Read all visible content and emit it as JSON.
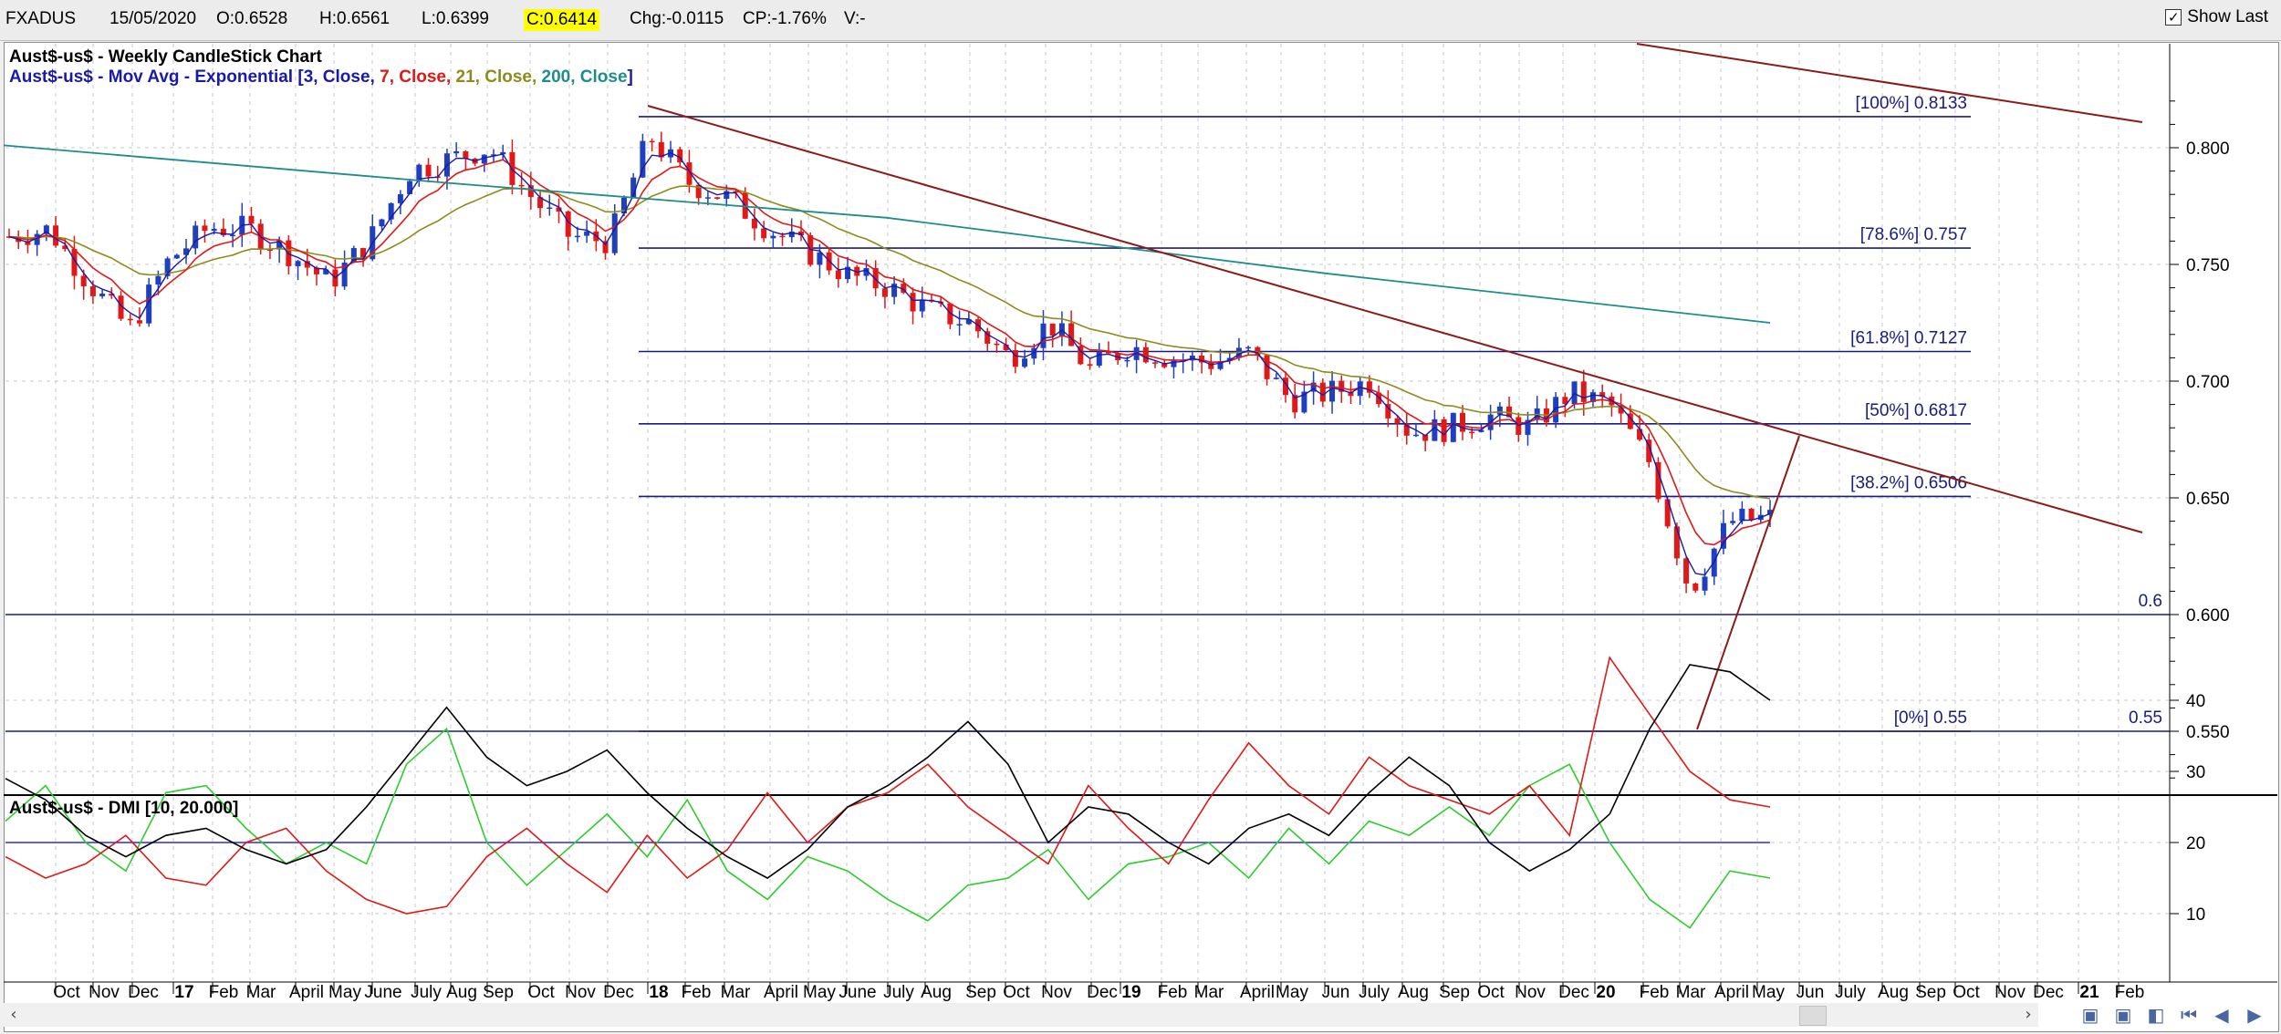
{
  "header": {
    "symbol": "FXADUS",
    "date": "15/05/2020",
    "open": "O:0.6528",
    "high": "H:0.6561",
    "low": "L:0.6399",
    "close": "C:0.6414",
    "change": "Chg:-0.0115",
    "change_pct": "CP:-1.76%",
    "volume": "V:-",
    "show_last_label": "Show Last"
  },
  "price_panel": {
    "title": "Aust$-us$ - Weekly CandleStick Chart",
    "ma_title": {
      "prefix": "Aust$-us$ - Mov Avg - Exponential [",
      "p1": "3, Close,",
      "p2": " 7, Close,",
      "p3": " 21, Close,",
      "p4": " 200, Close",
      "suffix": "]"
    }
  },
  "dmi_panel": {
    "title": "Aust$-us$ - DMI [10, 20.000]"
  },
  "colors": {
    "up_candle": "#1f3fbf",
    "down_candle": "#e01818",
    "ema3": "#1a1aa6",
    "ema7": "#e01818",
    "ema21": "#8c8c1e",
    "ema200": "#1f8c8c",
    "trendline": "#8b1a1a",
    "fib": "#1a1a80",
    "dmi_plus": "#2ecc2e",
    "dmi_minus": "#e01818",
    "adx": "#000000"
  },
  "chart_data": [
    {
      "type": "candlestick",
      "title": "Aust$-us$ - Weekly CandleStick Chart",
      "x_labels": [
        "Oct",
        "Nov",
        "Dec",
        "17",
        "Feb",
        "Mar",
        "April",
        "May",
        "June",
        "July",
        "Aug",
        "Sep",
        "Oct",
        "Nov",
        "Dec",
        "18",
        "Feb",
        "Mar",
        "April",
        "May",
        "June",
        "July",
        "Aug",
        "Sep",
        "Oct",
        "Nov",
        "Dec",
        "19",
        "Feb",
        "Mar",
        "April",
        "May",
        "Jun",
        "July",
        "Aug",
        "Sep",
        "Oct",
        "Nov",
        "Dec",
        "20",
        "Feb",
        "Mar",
        "April",
        "May",
        "Jun",
        "July",
        "Aug",
        "Sep",
        "Oct",
        "Nov",
        "Dec",
        "21",
        "Feb"
      ],
      "y_ticks": [
        "0.550",
        "0.600",
        "0.650",
        "0.700",
        "0.750",
        "0.800"
      ],
      "ylim": [
        0.52,
        0.83
      ],
      "series_close_approx": [
        {
          "date": "Sep 2016",
          "close": 0.762
        },
        {
          "date": "Oct 2016",
          "close": 0.765
        },
        {
          "date": "Nov 2016",
          "close": 0.742
        },
        {
          "date": "Dec 2016",
          "close": 0.722
        },
        {
          "date": "Jan 2017",
          "close": 0.752
        },
        {
          "date": "Feb 2017",
          "close": 0.766
        },
        {
          "date": "Mar 2017",
          "close": 0.765
        },
        {
          "date": "Apr 2017",
          "close": 0.755
        },
        {
          "date": "May 2017",
          "close": 0.742
        },
        {
          "date": "Jun 2017",
          "close": 0.76
        },
        {
          "date": "Jul 2017",
          "close": 0.79
        },
        {
          "date": "Aug 2017",
          "close": 0.795
        },
        {
          "date": "Sep 2017",
          "close": 0.8
        },
        {
          "date": "Oct 2017",
          "close": 0.78
        },
        {
          "date": "Nov 2017",
          "close": 0.762
        },
        {
          "date": "Dec 2017",
          "close": 0.76
        },
        {
          "date": "Jan 2018",
          "close": 0.805
        },
        {
          "date": "Feb 2018",
          "close": 0.785
        },
        {
          "date": "Mar 2018",
          "close": 0.778
        },
        {
          "date": "Apr 2018",
          "close": 0.765
        },
        {
          "date": "May 2018",
          "close": 0.755
        },
        {
          "date": "Jun 2018",
          "close": 0.745
        },
        {
          "date": "Jul 2018",
          "close": 0.74
        },
        {
          "date": "Aug 2018",
          "close": 0.73
        },
        {
          "date": "Sep 2018",
          "close": 0.725
        },
        {
          "date": "Oct 2018",
          "close": 0.71
        },
        {
          "date": "Nov 2018",
          "close": 0.725
        },
        {
          "date": "Dec 2018",
          "close": 0.705
        },
        {
          "date": "Jan 2019",
          "close": 0.715
        },
        {
          "date": "Feb 2019",
          "close": 0.71
        },
        {
          "date": "Mar 2019",
          "close": 0.708
        },
        {
          "date": "Apr 2019",
          "close": 0.712
        },
        {
          "date": "May 2019",
          "close": 0.692
        },
        {
          "date": "Jun 2019",
          "close": 0.695
        },
        {
          "date": "Jul 2019",
          "close": 0.7
        },
        {
          "date": "Aug 2019",
          "close": 0.678
        },
        {
          "date": "Sep 2019",
          "close": 0.68
        },
        {
          "date": "Oct 2019",
          "close": 0.685
        },
        {
          "date": "Nov 2019",
          "close": 0.68
        },
        {
          "date": "Dec 2019",
          "close": 0.695
        },
        {
          "date": "Jan 2020",
          "close": 0.69
        },
        {
          "date": "Feb 2020",
          "close": 0.665
        },
        {
          "date": "Mar 2020",
          "close": 0.61
        },
        {
          "date": "Apr 2020",
          "close": 0.64
        },
        {
          "date": "May 2020",
          "close": 0.6414
        }
      ],
      "ema200_approx": [
        {
          "date": "Sep 2016",
          "value": 0.801
        },
        {
          "date": "Sep 2017",
          "value": 0.785
        },
        {
          "date": "Jul 2018",
          "value": 0.77
        },
        {
          "date": "Jul 2019",
          "value": 0.746
        },
        {
          "date": "May 2020",
          "value": 0.725
        }
      ],
      "fibonacci": [
        {
          "label": "[100%] 0.8133",
          "value": 0.8133
        },
        {
          "label": "[78.6%] 0.757",
          "value": 0.757
        },
        {
          "label": "[61.8%] 0.7127",
          "value": 0.7127
        },
        {
          "label": "[50%] 0.6817",
          "value": 0.6817
        },
        {
          "label": "[38.2%] 0.6506",
          "value": 0.6506
        },
        {
          "label": "[0%] 0.55",
          "value": 0.55
        }
      ],
      "horizontal_levels": [
        {
          "label": "0.6",
          "value": 0.6
        },
        {
          "label": "0.55",
          "value": 0.55
        }
      ],
      "trendlines": [
        {
          "from": {
            "date": "Jan 2018",
            "value": 0.818
          },
          "to": {
            "date": "Jan 2021",
            "value": 0.634
          }
        },
        {
          "from": {
            "date": "Dec 2019",
            "value": 0.835
          },
          "to": {
            "date": "Jan 2021",
            "value": 0.811
          }
        },
        {
          "from": {
            "date": "Mar 2020",
            "value": 0.551
          },
          "to": {
            "date": "Jun 2020",
            "value": 0.677
          }
        }
      ]
    },
    {
      "type": "line",
      "title": "Aust$-us$ - DMI [10, 20.000]",
      "y_ticks": [
        "10",
        "20",
        "30",
        "40"
      ],
      "ylim": [
        0,
        54
      ],
      "reference_line": 20,
      "series": [
        {
          "name": "+DI",
          "values": [
            23,
            28,
            20,
            16,
            27,
            28,
            22,
            17,
            20,
            17,
            31,
            36,
            20,
            14,
            19,
            24,
            18,
            26,
            16,
            12,
            18,
            16,
            12,
            9,
            14,
            15,
            19,
            12,
            17,
            18,
            20,
            15,
            22,
            17,
            23,
            21,
            25,
            21,
            28,
            31,
            20,
            12,
            8,
            16,
            15
          ]
        },
        {
          "name": "-DI",
          "values": [
            18,
            15,
            17,
            21,
            15,
            14,
            20,
            22,
            16,
            12,
            10,
            11,
            18,
            22,
            17,
            13,
            21,
            15,
            19,
            27,
            20,
            25,
            27,
            31,
            25,
            21,
            17,
            28,
            22,
            17,
            26,
            34,
            28,
            24,
            32,
            28,
            26,
            24,
            28,
            21,
            46,
            38,
            30,
            26,
            25
          ]
        },
        {
          "name": "ADX",
          "values": [
            29,
            26,
            21,
            18,
            21,
            22,
            19,
            17,
            19,
            25,
            32,
            39,
            32,
            28,
            30,
            33,
            27,
            22,
            18,
            15,
            19,
            25,
            28,
            32,
            37,
            31,
            20,
            25,
            24,
            20,
            17,
            22,
            24,
            21,
            27,
            32,
            28,
            20,
            16,
            19,
            24,
            36,
            45,
            44,
            40
          ]
        }
      ]
    }
  ]
}
